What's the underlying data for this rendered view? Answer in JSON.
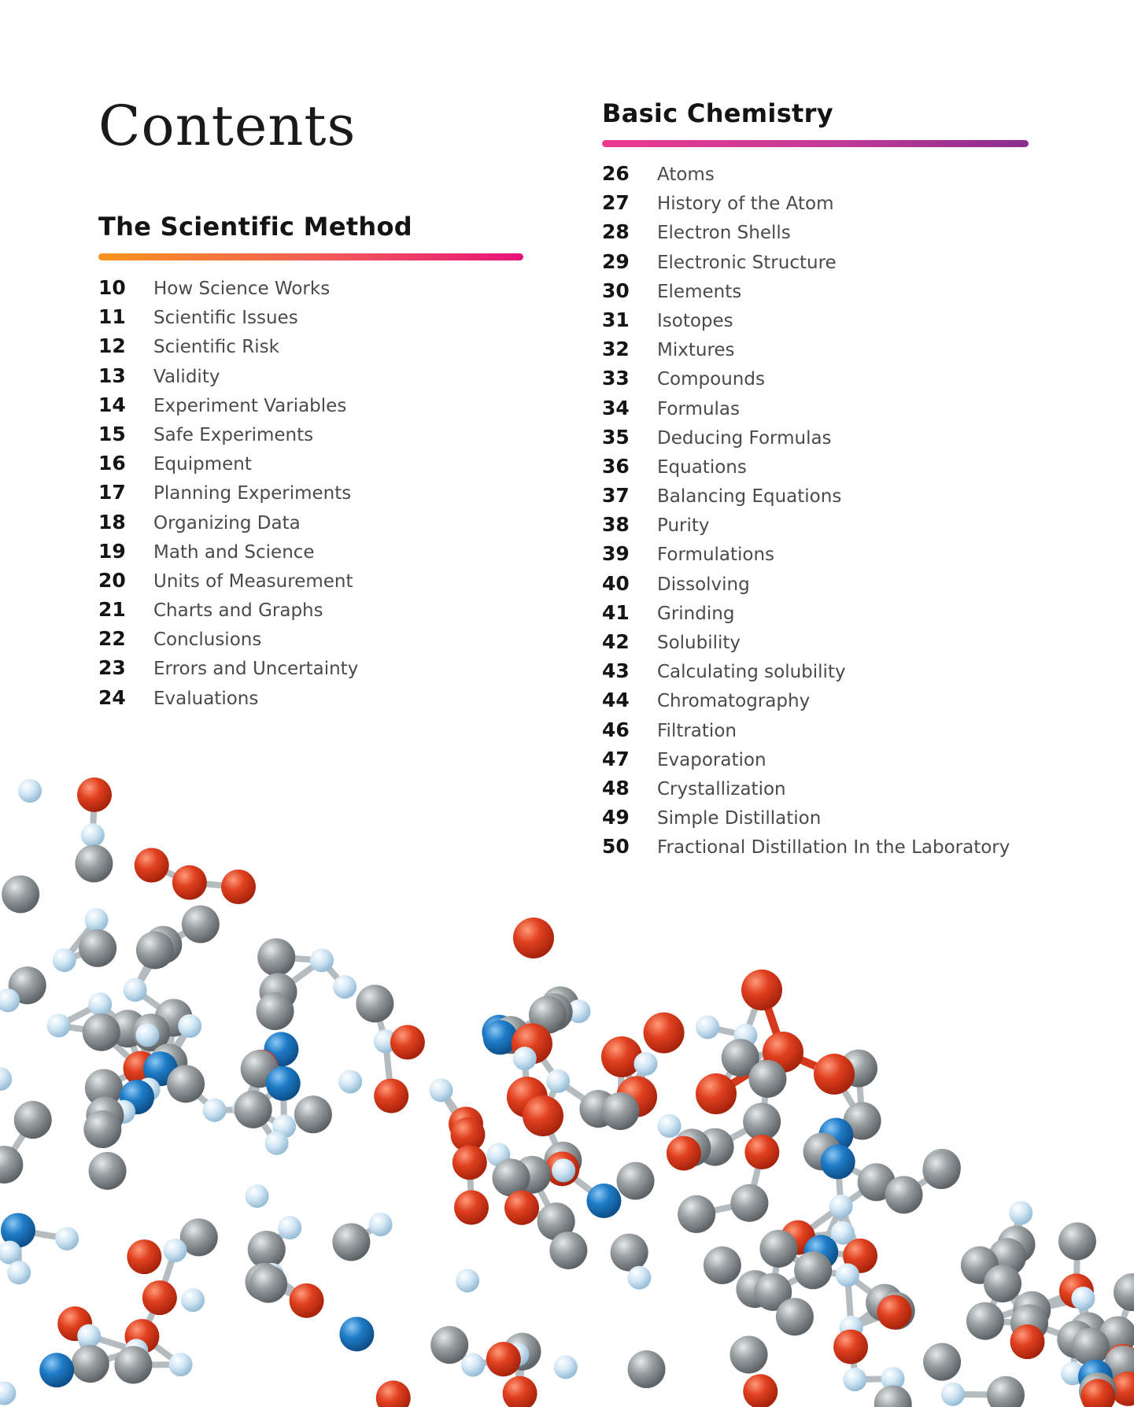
{
  "page": {
    "title": "Contents"
  },
  "sections": [
    {
      "heading": "The Scientific Method",
      "entries": [
        {
          "page": "10",
          "title": "How Science Works"
        },
        {
          "page": "11",
          "title": "Scientific Issues"
        },
        {
          "page": "12",
          "title": "Scientific Risk"
        },
        {
          "page": "13",
          "title": "Validity"
        },
        {
          "page": "14",
          "title": "Experiment Variables"
        },
        {
          "page": "15",
          "title": "Safe Experiments"
        },
        {
          "page": "16",
          "title": "Equipment"
        },
        {
          "page": "17",
          "title": "Planning Experiments"
        },
        {
          "page": "18",
          "title": "Organizing Data"
        },
        {
          "page": "19",
          "title": "Math and Science"
        },
        {
          "page": "20",
          "title": "Units of Measurement"
        },
        {
          "page": "21",
          "title": "Charts and Graphs"
        },
        {
          "page": "22",
          "title": "Conclusions"
        },
        {
          "page": "23",
          "title": "Errors and Uncertainty"
        },
        {
          "page": "24",
          "title": "Evaluations"
        }
      ]
    },
    {
      "heading": "Basic Chemistry",
      "entries": [
        {
          "page": "26",
          "title": "Atoms"
        },
        {
          "page": "27",
          "title": "History of the Atom"
        },
        {
          "page": "28",
          "title": "Electron Shells"
        },
        {
          "page": "29",
          "title": "Electronic Structure"
        },
        {
          "page": "30",
          "title": "Elements"
        },
        {
          "page": "31",
          "title": "Isotopes"
        },
        {
          "page": "32",
          "title": "Mixtures"
        },
        {
          "page": "33",
          "title": "Compounds"
        },
        {
          "page": "34",
          "title": "Formulas"
        },
        {
          "page": "35",
          "title": "Deducing Formulas"
        },
        {
          "page": "36",
          "title": "Equations"
        },
        {
          "page": "37",
          "title": "Balancing Equations"
        },
        {
          "page": "38",
          "title": "Purity"
        },
        {
          "page": "39",
          "title": "Formulations"
        },
        {
          "page": "40",
          "title": "Dissolving"
        },
        {
          "page": "41",
          "title": "Grinding"
        },
        {
          "page": "42",
          "title": "Solubility"
        },
        {
          "page": "43",
          "title": "Calculating solubility"
        },
        {
          "page": "44",
          "title": "Chromatography"
        },
        {
          "page": "46",
          "title": "Filtration"
        },
        {
          "page": "47",
          "title": "Evaporation"
        },
        {
          "page": "48",
          "title": "Crystallization"
        },
        {
          "page": "49",
          "title": "Simple Distillation"
        },
        {
          "page": "50",
          "title": "Fractional Distillation In the Laboratory"
        }
      ]
    }
  ],
  "illustration": {
    "name": "molecule-illustration",
    "colors": {
      "oxygen": "#e0401f",
      "carbon": "#8e9496",
      "nitrogen": "#1f7cc7",
      "hydrogen": "#c9e2f2",
      "bond": "#b5bcc0"
    }
  }
}
